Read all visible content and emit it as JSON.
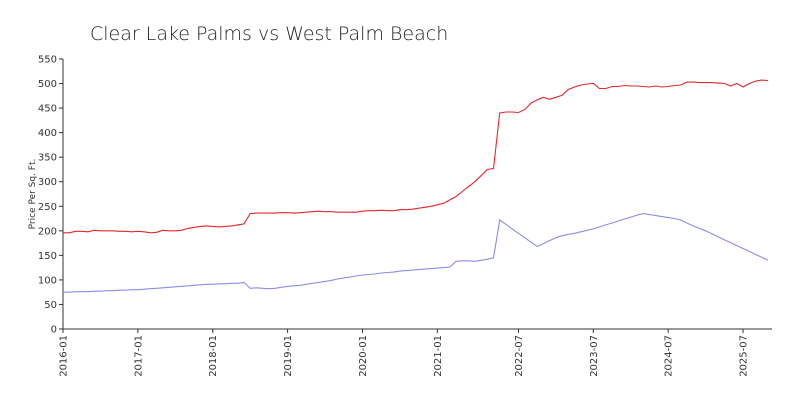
{
  "chart_data": {
    "type": "line",
    "title": "Clear Lake Palms vs West Palm Beach",
    "y_label": "Price Per Sq. Ft.",
    "x": [
      "2016-01",
      "2016-02",
      "2016-03",
      "2016-04",
      "2016-05",
      "2016-06",
      "2016-07",
      "2016-08",
      "2016-09",
      "2016-10",
      "2016-11",
      "2016-12",
      "2017-01",
      "2017-02",
      "2017-03",
      "2017-04",
      "2017-05",
      "2017-06",
      "2017-07",
      "2017-08",
      "2017-09",
      "2017-10",
      "2017-11",
      "2017-12",
      "2018-01",
      "2018-02",
      "2018-03",
      "2018-04",
      "2018-05",
      "2018-06",
      "2018-07",
      "2018-08",
      "2018-09",
      "2018-10",
      "2018-11",
      "2018-12",
      "2019-01",
      "2019-02",
      "2019-03",
      "2019-04",
      "2019-05",
      "2019-06",
      "2019-07",
      "2019-08",
      "2019-09",
      "2019-10",
      "2019-11",
      "2019-12",
      "2020-01",
      "2020-02",
      "2020-03",
      "2020-04",
      "2020-05",
      "2020-06",
      "2020-07",
      "2020-08",
      "2020-09",
      "2020-10",
      "2020-11",
      "2020-12",
      "2021-01",
      "2021-02",
      "2021-03",
      "2021-04",
      "2021-05",
      "2021-06",
      "2021-07",
      "2022-01",
      "2022-02",
      "2022-03",
      "2022-04",
      "2022-05",
      "2022-06",
      "2022-07",
      "2022-08",
      "2022-09",
      "2022-10",
      "2022-11",
      "2022-12",
      "2023-01",
      "2023-02",
      "2023-03",
      "2023-04",
      "2023-05",
      "2023-06",
      "2023-07",
      "2023-08",
      "2023-09",
      "2023-10",
      "2023-11",
      "2023-12",
      "2024-01",
      "2024-02",
      "2024-03",
      "2024-04",
      "2024-05",
      "2024-06",
      "2024-07",
      "2024-08",
      "2024-09",
      "2024-10",
      "2024-11",
      "2024-12",
      "2025-01",
      "2025-02",
      "2025-03",
      "2025-04",
      "2025-05",
      "2025-06",
      "2025-07",
      "2025-08",
      "2025-09",
      "2025-10",
      "2025-11"
    ],
    "series": [
      {
        "color": "#e8252b",
        "values": [
          196,
          196,
          199,
          199,
          198,
          201,
          200,
          200,
          200,
          199,
          199,
          198,
          199,
          198,
          196,
          197,
          201,
          200,
          200,
          201,
          205,
          207,
          209,
          210,
          209,
          208,
          209,
          210,
          212,
          214,
          235,
          236,
          236,
          236,
          236,
          237,
          237,
          236,
          237,
          238,
          239,
          240,
          239,
          239,
          238,
          238,
          238,
          238,
          240,
          241,
          241,
          242,
          241,
          241,
          243,
          243,
          244,
          246,
          248,
          250,
          253,
          256,
          263,
          270,
          280,
          290,
          300,
          312,
          325,
          327,
          440,
          442,
          442,
          441,
          447,
          460,
          467,
          472,
          468,
          472,
          476,
          488,
          493,
          497,
          499,
          500,
          490,
          490,
          494,
          494,
          496,
          495,
          495,
          494,
          493,
          495,
          493,
          494,
          496,
          497,
          503,
          503,
          502,
          502,
          502,
          501,
          500,
          495,
          500,
          493,
          500,
          505,
          507,
          506
        ]
      },
      {
        "color": "#8c8cec",
        "values": [
          75,
          75,
          76,
          76,
          76,
          77,
          77,
          78,
          78,
          79,
          79,
          80,
          80,
          81,
          82,
          83,
          84,
          85,
          86,
          87,
          88,
          89,
          90,
          91,
          91,
          92,
          92,
          93,
          93,
          95,
          83,
          84,
          83,
          82,
          83,
          85,
          87,
          88,
          89,
          91,
          93,
          95,
          97,
          99,
          102,
          104,
          106,
          108,
          110,
          111,
          112,
          114,
          115,
          116,
          118,
          119,
          120,
          121,
          122,
          123,
          124,
          125,
          126,
          138,
          139,
          139,
          138,
          140,
          142,
          145,
          222,
          213,
          204,
          195,
          186,
          177,
          168,
          174,
          180,
          186,
          190,
          193,
          195,
          198,
          201,
          204,
          208,
          212,
          216,
          220,
          224,
          228,
          232,
          235,
          233,
          231,
          229,
          227,
          225,
          222,
          216,
          210,
          205,
          200,
          194,
          188,
          182,
          176,
          170,
          164,
          158,
          152,
          146,
          140
        ]
      }
    ],
    "xticks": [
      "2016-01",
      "2017-01",
      "2018-01",
      "2019-01",
      "2020-01",
      "2021-01",
      "2022-07",
      "2023-07",
      "2024-07",
      "2025-07"
    ],
    "ylim": [
      0,
      550
    ],
    "yticks": [
      0,
      50,
      100,
      150,
      200,
      250,
      300,
      350,
      400,
      450,
      500,
      550
    ],
    "grid": false
  }
}
